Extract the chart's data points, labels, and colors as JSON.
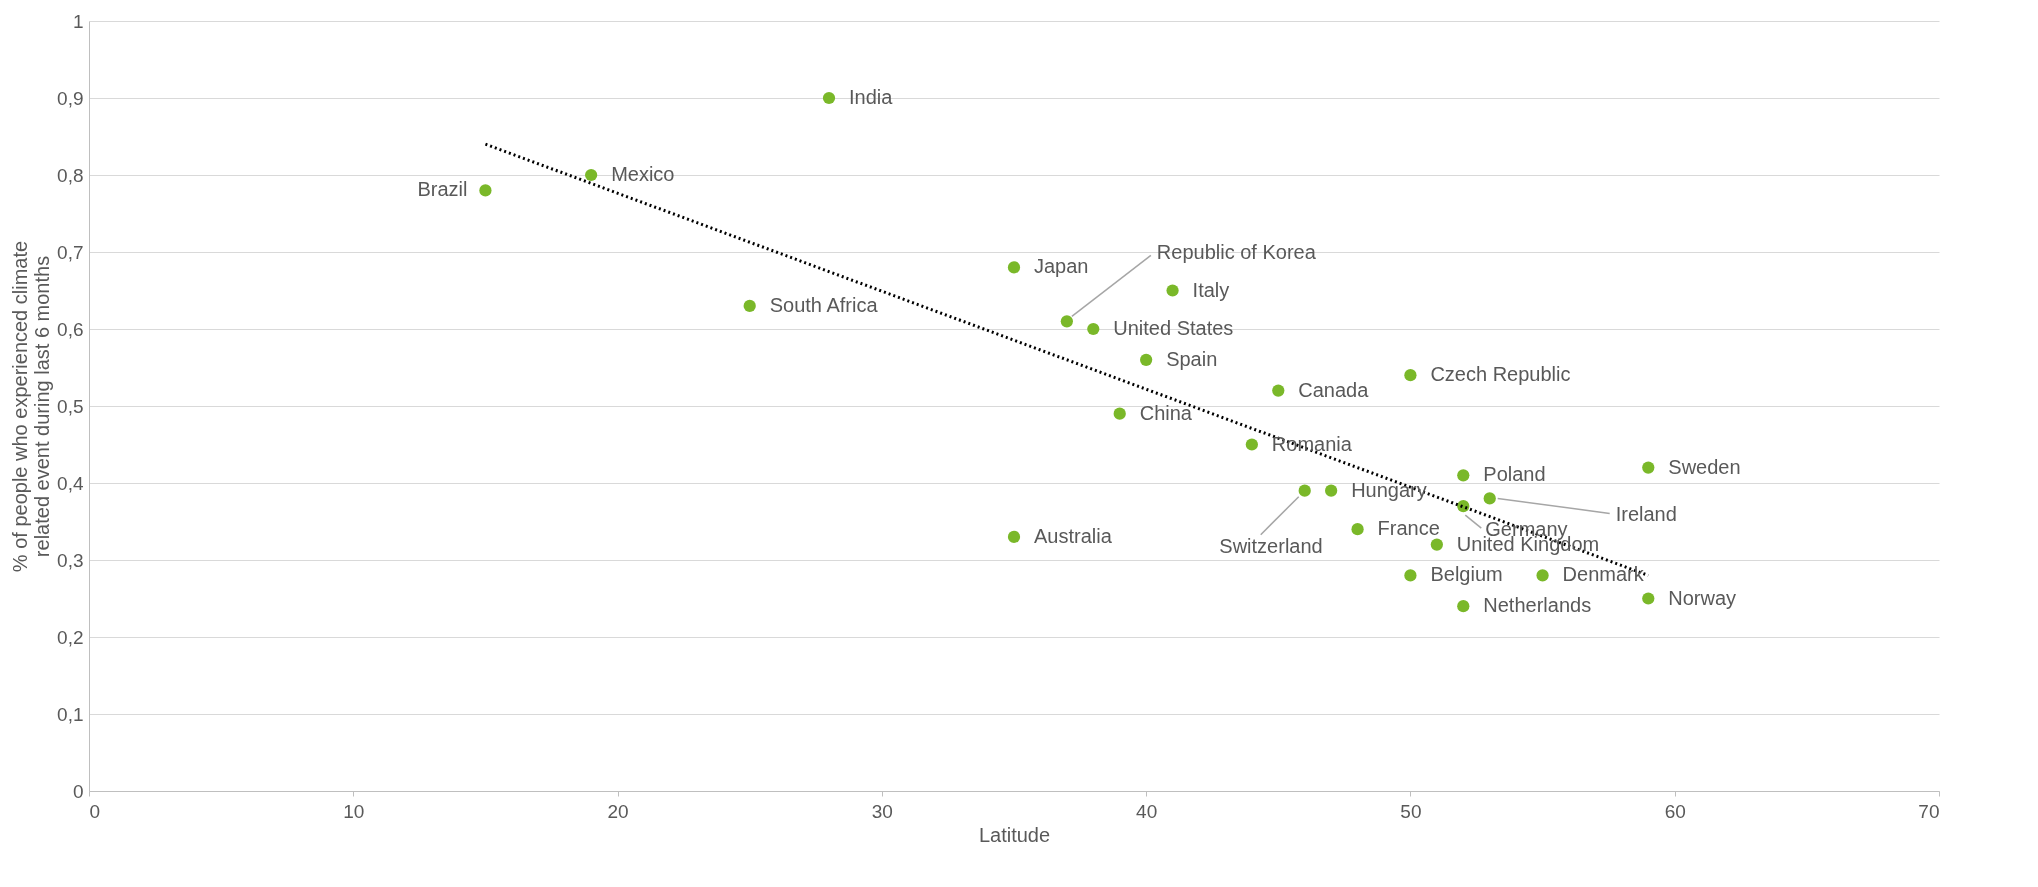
{
  "chart_data": {
    "type": "scatter",
    "xlabel": "Latitude",
    "ylabel": "% of people who experienced climate related event during last 6 months",
    "xlim": [
      0,
      70
    ],
    "xticks": [
      0,
      10,
      20,
      30,
      40,
      50,
      60,
      70
    ],
    "ylim": [
      0,
      1
    ],
    "yticks": [
      0,
      {
        "value": 0.1,
        "label": "0,1"
      },
      {
        "value": 0.2,
        "label": "0,2"
      },
      {
        "value": 0.3,
        "label": "0,3"
      },
      {
        "value": 0.4,
        "label": "0,4"
      },
      {
        "value": 0.5,
        "label": "0,5"
      },
      {
        "value": 0.6,
        "label": "0,6"
      },
      {
        "value": 0.7,
        "label": "0,7"
      },
      {
        "value": 0.8,
        "label": "0,8"
      },
      {
        "value": 0.9,
        "label": "0,9"
      },
      1
    ],
    "grid": "y",
    "series": [
      {
        "marker": "circle",
        "color": "#7ab829",
        "x": [
          28,
          19,
          15,
          35,
          37,
          41,
          25,
          38,
          40,
          45,
          50,
          39,
          44,
          52,
          59,
          47,
          46,
          53,
          52,
          35,
          48,
          51,
          50,
          55,
          52,
          59
        ],
        "values": [
          0.9,
          0.8,
          0.78,
          0.68,
          0.61,
          0.65,
          0.63,
          0.6,
          0.56,
          0.52,
          0.54,
          0.49,
          0.45,
          0.41,
          0.42,
          0.39,
          0.39,
          0.38,
          0.37,
          0.33,
          0.34,
          0.32,
          0.28,
          0.28,
          0.24,
          0.25
        ]
      },
      {
        "type": "line",
        "color": "#000000",
        "line_style": "dotted",
        "x": [
          15,
          59
        ],
        "values": [
          0.84,
          0.28
        ]
      }
    ],
    "annotations": [
      {
        "text": "India",
        "x": 28,
        "y": 0.9
      },
      {
        "text": "Mexico",
        "x": 19,
        "y": 0.8
      },
      {
        "text": "Brazil",
        "x": 15,
        "y": 0.78
      },
      {
        "text": "Japan",
        "x": 35,
        "y": 0.68
      },
      {
        "text": "Republic of Korea",
        "x": 37,
        "y": 0.61
      },
      {
        "text": "Italy",
        "x": 41,
        "y": 0.65
      },
      {
        "text": "South Africa",
        "x": 25,
        "y": 0.63
      },
      {
        "text": "United States",
        "x": 38,
        "y": 0.6
      },
      {
        "text": "Spain",
        "x": 40,
        "y": 0.56
      },
      {
        "text": "Canada",
        "x": 45,
        "y": 0.52
      },
      {
        "text": "Czech Republic",
        "x": 50,
        "y": 0.54
      },
      {
        "text": "China",
        "x": 39,
        "y": 0.49
      },
      {
        "text": "Romania",
        "x": 44,
        "y": 0.45
      },
      {
        "text": "Poland",
        "x": 52,
        "y": 0.41
      },
      {
        "text": "Sweden",
        "x": 59,
        "y": 0.42
      },
      {
        "text": "Hungary",
        "x": 47,
        "y": 0.39
      },
      {
        "text": "Switzerland",
        "x": 46,
        "y": 0.39
      },
      {
        "text": "Ireland",
        "x": 53,
        "y": 0.38
      },
      {
        "text": "Germany",
        "x": 52,
        "y": 0.37
      },
      {
        "text": "Australia",
        "x": 35,
        "y": 0.33
      },
      {
        "text": "France",
        "x": 48,
        "y": 0.34
      },
      {
        "text": "United Kingdom",
        "x": 51,
        "y": 0.32
      },
      {
        "text": "Belgium",
        "x": 50,
        "y": 0.28
      },
      {
        "text": "Denmark",
        "x": 55,
        "y": 0.28
      },
      {
        "text": "Netherlands",
        "x": 52,
        "y": 0.24
      },
      {
        "text": "Norway",
        "x": 59,
        "y": 0.25
      }
    ]
  }
}
